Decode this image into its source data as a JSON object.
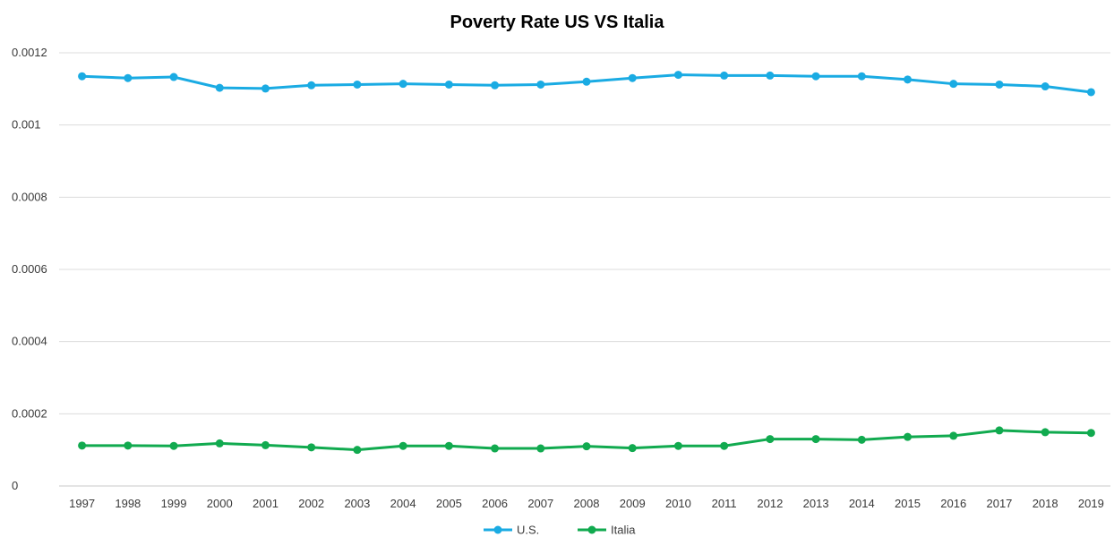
{
  "chart_data": {
    "type": "line",
    "title": "Poverty Rate US VS Italia",
    "xlabel": "",
    "ylabel": "",
    "categories": [
      "1997",
      "1998",
      "1999",
      "2000",
      "2001",
      "2002",
      "2003",
      "2004",
      "2005",
      "2006",
      "2007",
      "2008",
      "2009",
      "2010",
      "2011",
      "2012",
      "2013",
      "2014",
      "2015",
      "2016",
      "2017",
      "2018",
      "2019"
    ],
    "ylim": [
      0,
      0.0012
    ],
    "yticks": [
      "0",
      "0.0002",
      "0.0004",
      "0.0006",
      "0.0008",
      "0.001",
      "0.0012"
    ],
    "ytick_values": [
      0,
      0.0002,
      0.0004,
      0.0006,
      0.0008,
      0.001,
      0.0012
    ],
    "grid": true,
    "legend_position": "bottom",
    "series": [
      {
        "name": "U.S.",
        "color": "#1AABE3",
        "values": [
          0.001135,
          0.00113,
          0.001133,
          0.001103,
          0.001101,
          0.00111,
          0.001112,
          0.001114,
          0.001112,
          0.00111,
          0.001112,
          0.00112,
          0.00113,
          0.001139,
          0.001137,
          0.001137,
          0.001135,
          0.001135,
          0.001126,
          0.001114,
          0.001112,
          0.001107,
          0.001091
        ]
      },
      {
        "name": "Italia",
        "color": "#11AA4F",
        "values": [
          0.000112,
          0.000112,
          0.000111,
          0.000118,
          0.000113,
          0.000107,
          0.0001,
          0.000111,
          0.000111,
          0.000104,
          0.000104,
          0.00011,
          0.000105,
          0.000111,
          0.000111,
          0.00013,
          0.00013,
          0.000128,
          0.000136,
          0.000139,
          0.000154,
          0.000149,
          0.000147
        ]
      }
    ]
  }
}
